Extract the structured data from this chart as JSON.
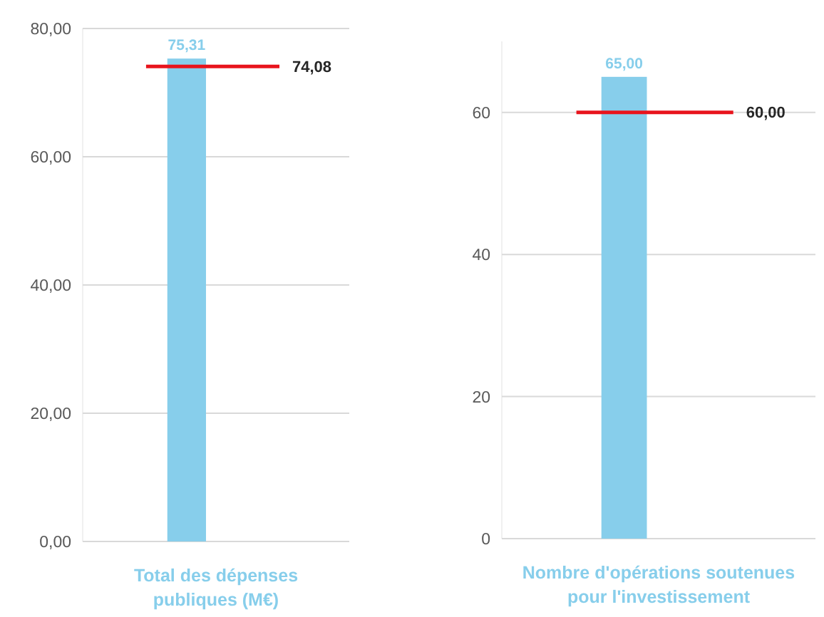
{
  "chart_data": [
    {
      "type": "bar",
      "categories": [
        "Total des dépenses publiques (M€)"
      ],
      "values": [
        75.31
      ],
      "color": "#87ceeb",
      "value_labels": [
        "75,31"
      ],
      "ylim": [
        0,
        80
      ],
      "yticks": [
        {
          "value": 0,
          "label": "0,00"
        },
        {
          "value": 20,
          "label": "20,00"
        },
        {
          "value": 40,
          "label": "40,00"
        },
        {
          "value": 60,
          "label": "60,00"
        },
        {
          "value": 80,
          "label": "80,00"
        }
      ],
      "grid": "y",
      "ref_lines": [
        {
          "axis": "y",
          "value": 74.08,
          "label": "74,08",
          "color": "#e8141c"
        }
      ]
    },
    {
      "type": "bar",
      "categories": [
        "Nombre d'opérations soutenues pour l'investissement"
      ],
      "values": [
        65
      ],
      "color": "#87ceeb",
      "value_labels": [
        "65,00"
      ],
      "ylim": [
        0,
        70
      ],
      "yticks": [
        0,
        20,
        40,
        60
      ],
      "grid": "y",
      "ref_lines": [
        {
          "axis": "y",
          "value": 60,
          "label": "60,00",
          "color": "#e8141c"
        }
      ]
    }
  ]
}
